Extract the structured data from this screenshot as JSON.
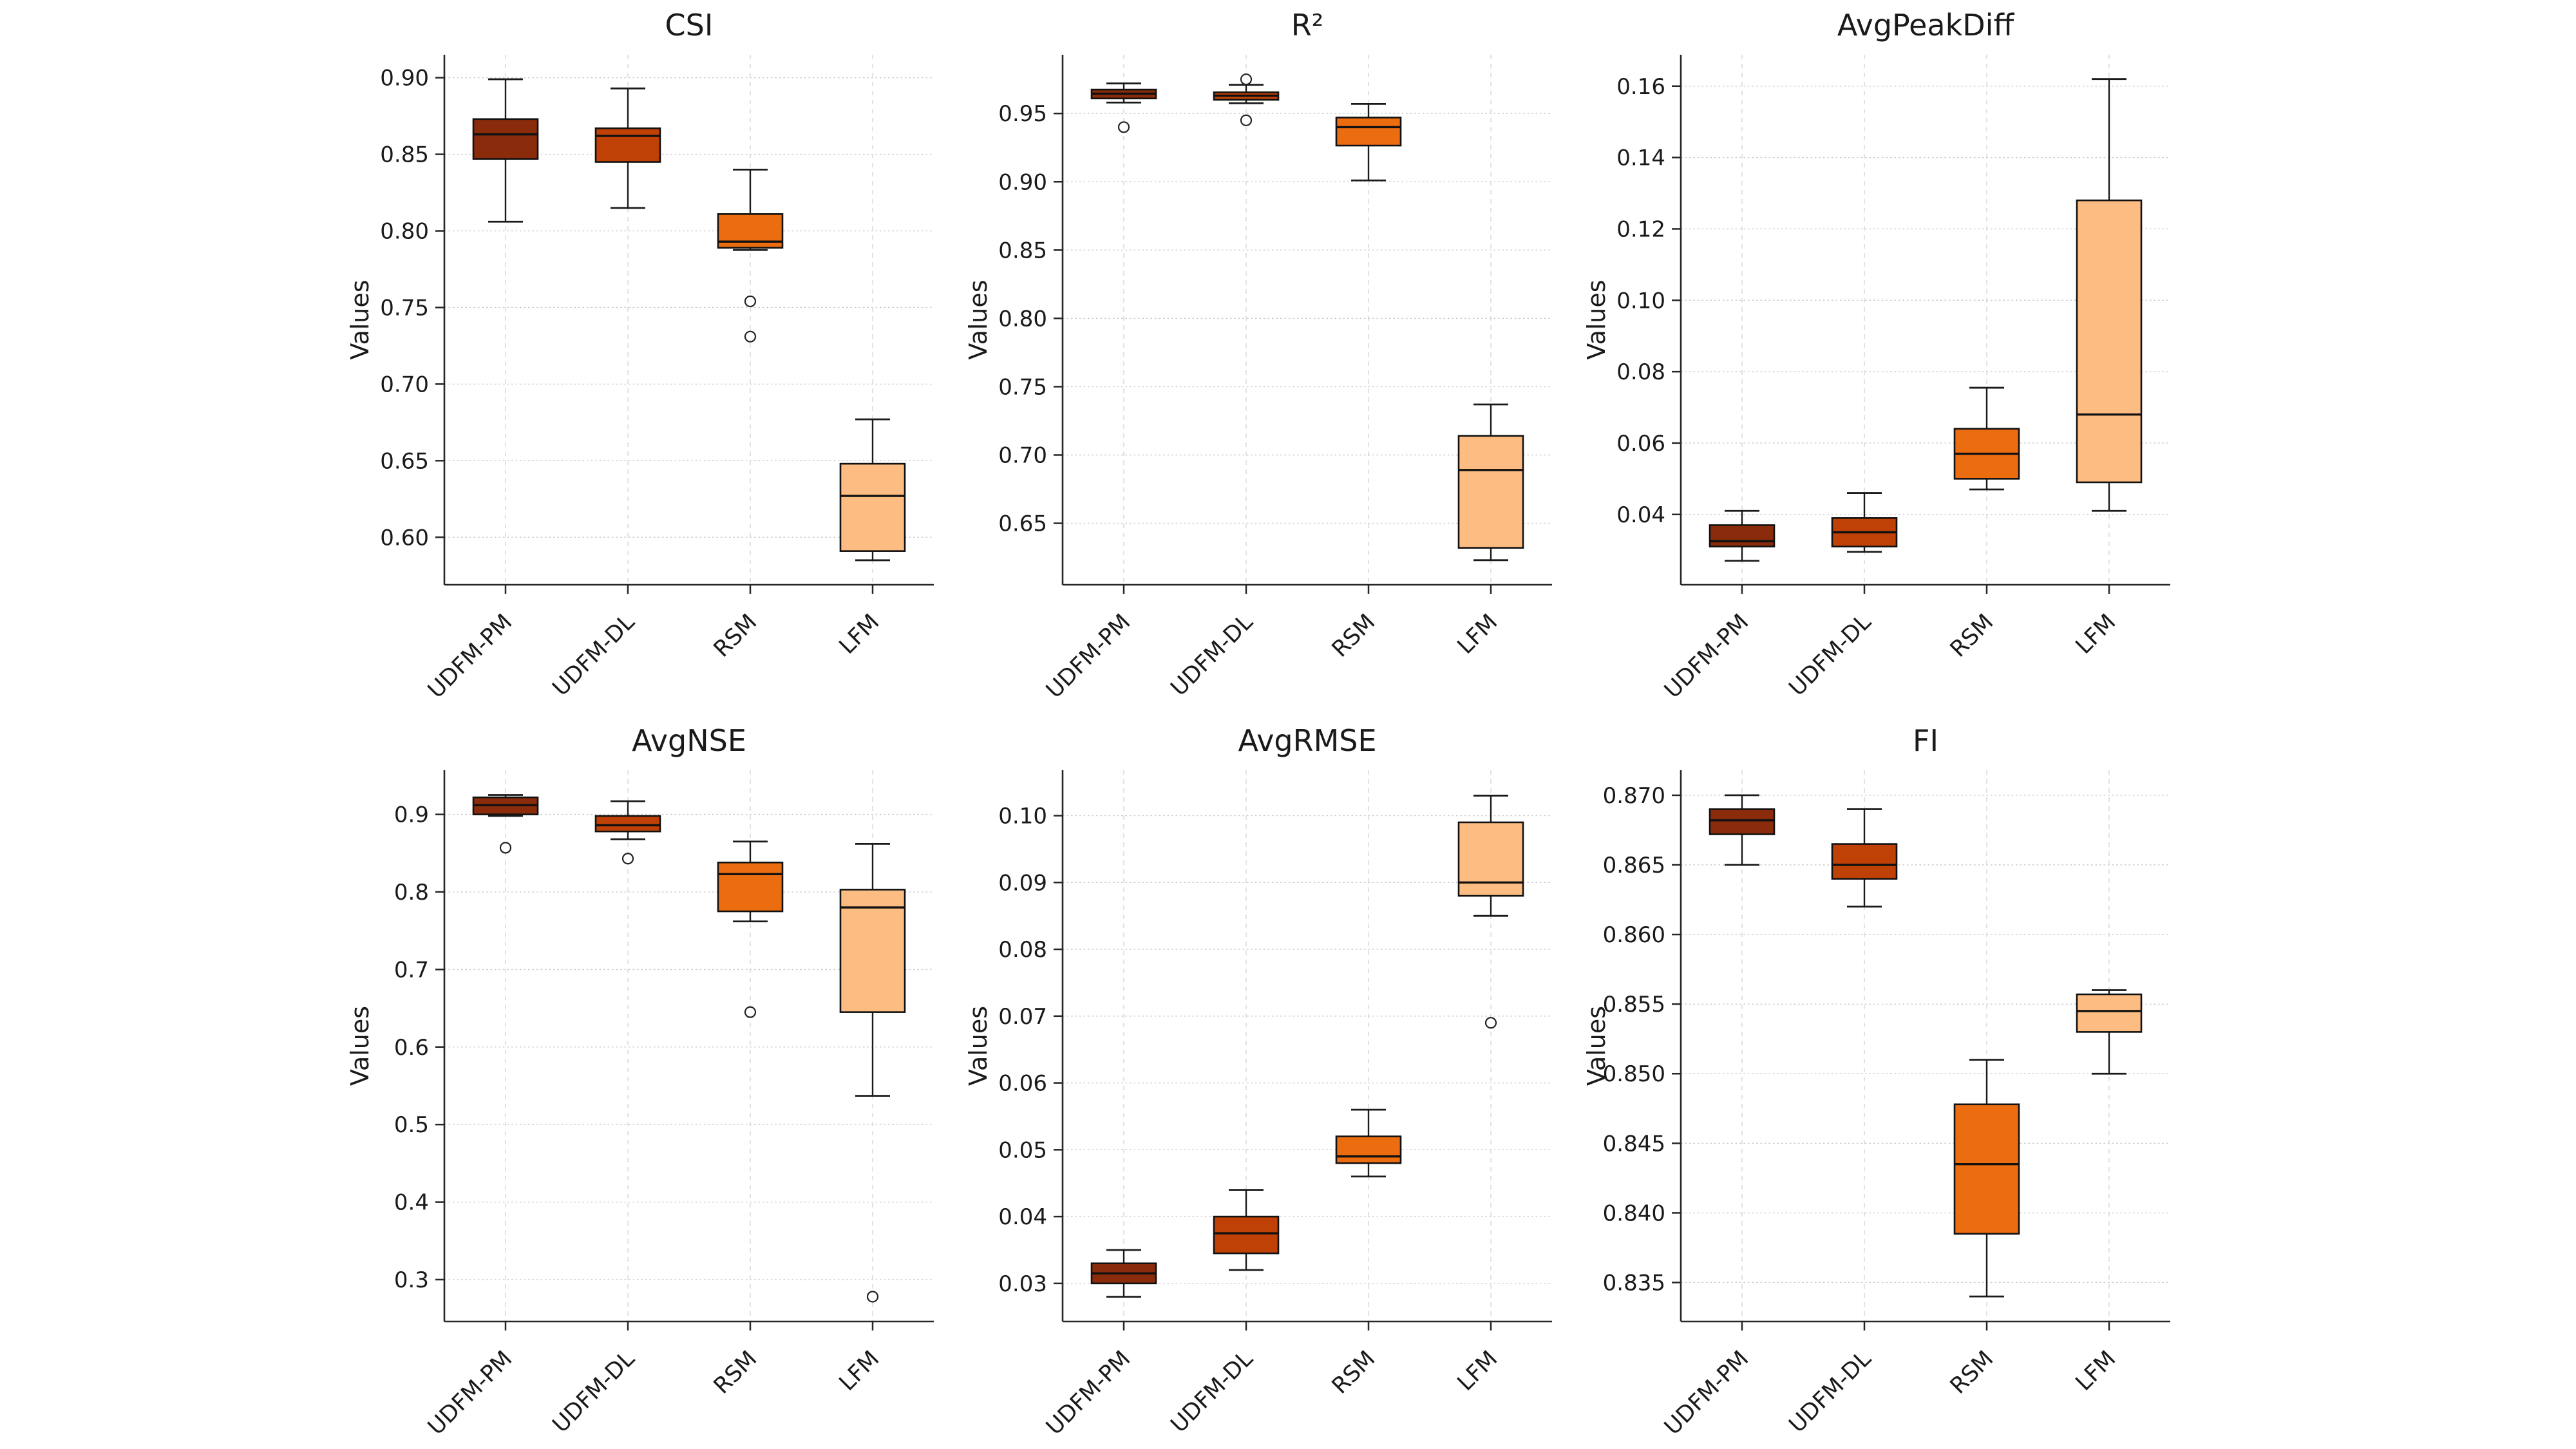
{
  "figure": {
    "background": "#ffffff",
    "text_color": "#1a1a1a",
    "axis_color": "#262626",
    "hgrid_color": "#c9c9c9",
    "vgrid_color": "#d6d6d6",
    "ylabel": "Values",
    "categories": [
      "UDFM-PM",
      "UDFM-DL",
      "RSM",
      "LFM"
    ],
    "category_colors": [
      "#8a2c0b",
      "#bf4106",
      "#ec6c10",
      "#fdbd82"
    ]
  },
  "chart_data": [
    {
      "type": "box",
      "title": "CSI",
      "ylabel": "Values",
      "categories": [
        "UDFM-PM",
        "UDFM-DL",
        "RSM",
        "LFM"
      ],
      "ylim": [
        0.569,
        0.915
      ],
      "yticks": [
        0.6,
        0.65,
        0.7,
        0.75,
        0.8,
        0.85,
        0.9
      ],
      "ytick_labels": [
        "0.60",
        "0.65",
        "0.70",
        "0.75",
        "0.80",
        "0.85",
        "0.90"
      ],
      "grid": true,
      "legend": "none",
      "boxes": [
        {
          "category": "UDFM-PM",
          "whislo": 0.806,
          "q1": 0.847,
          "med": 0.863,
          "q3": 0.873,
          "whishi": 0.899,
          "fliers": []
        },
        {
          "category": "UDFM-DL",
          "whislo": 0.815,
          "q1": 0.845,
          "med": 0.862,
          "q3": 0.867,
          "whishi": 0.893,
          "fliers": []
        },
        {
          "category": "RSM",
          "whislo": 0.7875,
          "q1": 0.789,
          "med": 0.793,
          "q3": 0.811,
          "whishi": 0.84,
          "fliers": [
            0.754,
            0.731
          ]
        },
        {
          "category": "LFM",
          "whislo": 0.585,
          "q1": 0.591,
          "med": 0.627,
          "q3": 0.648,
          "whishi": 0.677,
          "fliers": []
        }
      ]
    },
    {
      "type": "box",
      "title": "R²",
      "ylabel": "Values",
      "categories": [
        "UDFM-PM",
        "UDFM-DL",
        "RSM",
        "LFM"
      ],
      "ylim": [
        0.605,
        0.993
      ],
      "yticks": [
        0.65,
        0.7,
        0.75,
        0.8,
        0.85,
        0.9,
        0.95
      ],
      "ytick_labels": [
        "0.65",
        "0.70",
        "0.75",
        "0.80",
        "0.85",
        "0.90",
        "0.95"
      ],
      "grid": true,
      "legend": "none",
      "boxes": [
        {
          "category": "UDFM-PM",
          "whislo": 0.958,
          "q1": 0.961,
          "med": 0.9645,
          "q3": 0.9675,
          "whishi": 0.972,
          "fliers": [
            0.94
          ]
        },
        {
          "category": "UDFM-DL",
          "whislo": 0.9575,
          "q1": 0.96,
          "med": 0.963,
          "q3": 0.9655,
          "whishi": 0.971,
          "fliers": [
            0.975,
            0.945
          ]
        },
        {
          "category": "RSM",
          "whislo": 0.901,
          "q1": 0.9265,
          "med": 0.94,
          "q3": 0.947,
          "whishi": 0.957,
          "fliers": []
        },
        {
          "category": "LFM",
          "whislo": 0.623,
          "q1": 0.632,
          "med": 0.689,
          "q3": 0.714,
          "whishi": 0.737,
          "fliers": []
        }
      ]
    },
    {
      "type": "box",
      "title": "AvgPeakDiff",
      "ylabel": "Values",
      "categories": [
        "UDFM-PM",
        "UDFM-DL",
        "RSM",
        "LFM"
      ],
      "ylim": [
        0.0203,
        0.1688
      ],
      "yticks": [
        0.04,
        0.06,
        0.08,
        0.1,
        0.12,
        0.14,
        0.16
      ],
      "ytick_labels": [
        "0.04",
        "0.06",
        "0.08",
        "0.10",
        "0.12",
        "0.14",
        "0.16"
      ],
      "grid": true,
      "legend": "none",
      "boxes": [
        {
          "category": "UDFM-PM",
          "whislo": 0.027,
          "q1": 0.031,
          "med": 0.0325,
          "q3": 0.037,
          "whishi": 0.041,
          "fliers": []
        },
        {
          "category": "UDFM-DL",
          "whislo": 0.0295,
          "q1": 0.031,
          "med": 0.035,
          "q3": 0.039,
          "whishi": 0.046,
          "fliers": []
        },
        {
          "category": "RSM",
          "whislo": 0.047,
          "q1": 0.05,
          "med": 0.057,
          "q3": 0.064,
          "whishi": 0.0755,
          "fliers": []
        },
        {
          "category": "LFM",
          "whislo": 0.041,
          "q1": 0.049,
          "med": 0.068,
          "q3": 0.128,
          "whishi": 0.162,
          "fliers": []
        }
      ]
    },
    {
      "type": "box",
      "title": "AvgNSE",
      "ylabel": "Values",
      "categories": [
        "UDFM-PM",
        "UDFM-DL",
        "RSM",
        "LFM"
      ],
      "ylim": [
        0.246,
        0.957
      ],
      "yticks": [
        0.3,
        0.4,
        0.5,
        0.6,
        0.7,
        0.8,
        0.9
      ],
      "ytick_labels": [
        "0.3",
        "0.4",
        "0.5",
        "0.6",
        "0.7",
        "0.8",
        "0.9"
      ],
      "grid": true,
      "legend": "none",
      "boxes": [
        {
          "category": "UDFM-PM",
          "whislo": 0.898,
          "q1": 0.9,
          "med": 0.912,
          "q3": 0.922,
          "whishi": 0.925,
          "fliers": [
            0.857
          ]
        },
        {
          "category": "UDFM-DL",
          "whislo": 0.868,
          "q1": 0.878,
          "med": 0.886,
          "q3": 0.898,
          "whishi": 0.917,
          "fliers": [
            0.843
          ]
        },
        {
          "category": "RSM",
          "whislo": 0.762,
          "q1": 0.775,
          "med": 0.823,
          "q3": 0.838,
          "whishi": 0.865,
          "fliers": [
            0.645
          ]
        },
        {
          "category": "LFM",
          "whislo": 0.537,
          "q1": 0.645,
          "med": 0.78,
          "q3": 0.803,
          "whishi": 0.862,
          "fliers": [
            0.278
          ]
        }
      ]
    },
    {
      "type": "box",
      "title": "AvgRMSE",
      "ylabel": "Values",
      "categories": [
        "UDFM-PM",
        "UDFM-DL",
        "RSM",
        "LFM"
      ],
      "ylim": [
        0.0243,
        0.1068
      ],
      "yticks": [
        0.03,
        0.04,
        0.05,
        0.06,
        0.07,
        0.08,
        0.09,
        0.1
      ],
      "ytick_labels": [
        "0.03",
        "0.04",
        "0.05",
        "0.06",
        "0.07",
        "0.08",
        "0.09",
        "0.10"
      ],
      "grid": true,
      "legend": "none",
      "boxes": [
        {
          "category": "UDFM-PM",
          "whislo": 0.028,
          "q1": 0.03,
          "med": 0.0315,
          "q3": 0.033,
          "whishi": 0.035,
          "fliers": []
        },
        {
          "category": "UDFM-DL",
          "whislo": 0.032,
          "q1": 0.0345,
          "med": 0.0375,
          "q3": 0.04,
          "whishi": 0.044,
          "fliers": []
        },
        {
          "category": "RSM",
          "whislo": 0.046,
          "q1": 0.048,
          "med": 0.049,
          "q3": 0.052,
          "whishi": 0.056,
          "fliers": []
        },
        {
          "category": "LFM",
          "whislo": 0.085,
          "q1": 0.088,
          "med": 0.09,
          "q3": 0.099,
          "whishi": 0.103,
          "fliers": [
            0.069
          ]
        }
      ]
    },
    {
      "type": "box",
      "title": "FI",
      "ylabel": "Values",
      "categories": [
        "UDFM-PM",
        "UDFM-DL",
        "RSM",
        "LFM"
      ],
      "ylim": [
        0.8322,
        0.8718
      ],
      "yticks": [
        0.835,
        0.84,
        0.845,
        0.85,
        0.855,
        0.86,
        0.865,
        0.87
      ],
      "ytick_labels": [
        "0.835",
        "0.840",
        "0.845",
        "0.850",
        "0.855",
        "0.860",
        "0.865",
        "0.870"
      ],
      "grid": true,
      "legend": "none",
      "boxes": [
        {
          "category": "UDFM-PM",
          "whislo": 0.865,
          "q1": 0.8672,
          "med": 0.8682,
          "q3": 0.869,
          "whishi": 0.87,
          "fliers": []
        },
        {
          "category": "UDFM-DL",
          "whislo": 0.862,
          "q1": 0.864,
          "med": 0.865,
          "q3": 0.8665,
          "whishi": 0.869,
          "fliers": []
        },
        {
          "category": "RSM",
          "whislo": 0.834,
          "q1": 0.8385,
          "med": 0.8435,
          "q3": 0.8478,
          "whishi": 0.851,
          "fliers": []
        },
        {
          "category": "LFM",
          "whislo": 0.85,
          "q1": 0.853,
          "med": 0.8545,
          "q3": 0.8557,
          "whishi": 0.856,
          "fliers": []
        }
      ]
    }
  ]
}
